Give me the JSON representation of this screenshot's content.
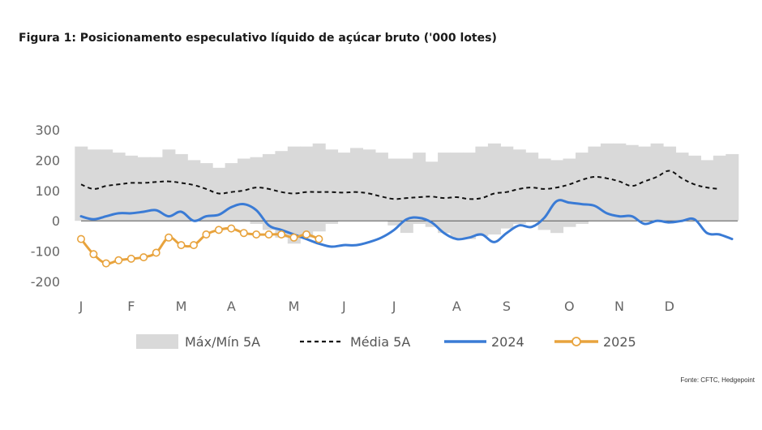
{
  "title": "Figura 1: Posicionamento especulativo líquido de açúcar bruto ('000 lotes)",
  "source": "Fonte: CFTC, Hedgepoint",
  "colors": {
    "band": "#d9d9d9",
    "mean": "#111111",
    "y2024": "#3a7bd5",
    "y2025": "#e8a33d",
    "axis": "#888888",
    "text": "#666666"
  },
  "chart_data": {
    "type": "line",
    "title": "Figura 1: Posicionamento especulativo líquido de açúcar bruto ('000 lotes)",
    "xlabel": "",
    "ylabel": "",
    "ylim": [
      -200,
      300
    ],
    "yticks": [
      300,
      200,
      100,
      0,
      -100,
      -200
    ],
    "xlim": [
      1,
      53
    ],
    "x_unit": "week of year",
    "month_ticks": [
      {
        "label": "J",
        "week": 1
      },
      {
        "label": "F",
        "week": 5
      },
      {
        "label": "M",
        "week": 9
      },
      {
        "label": "A",
        "week": 13
      },
      {
        "label": "M",
        "week": 18
      },
      {
        "label": "J",
        "week": 22
      },
      {
        "label": "J",
        "week": 26
      },
      {
        "label": "A",
        "week": 31
      },
      {
        "label": "S",
        "week": 35
      },
      {
        "label": "O",
        "week": 40
      },
      {
        "label": "N",
        "week": 44
      },
      {
        "label": "D",
        "week": 48
      }
    ],
    "grid": false,
    "legend_position": "bottom",
    "legend": [
      "Máx/Mín 5A",
      "Média 5A",
      "2024",
      "2025"
    ],
    "series": [
      {
        "name": "Máx/Mín 5A",
        "kind": "band",
        "x": [
          1,
          2,
          3,
          4,
          5,
          6,
          7,
          8,
          9,
          10,
          11,
          12,
          13,
          14,
          15,
          16,
          17,
          18,
          19,
          20,
          21,
          22,
          23,
          24,
          25,
          26,
          27,
          28,
          29,
          30,
          31,
          32,
          33,
          34,
          35,
          36,
          37,
          38,
          39,
          40,
          41,
          42,
          43,
          44,
          45,
          46,
          47,
          48,
          49,
          50,
          51,
          52,
          53
        ],
        "max": [
          245,
          235,
          235,
          225,
          215,
          210,
          210,
          235,
          220,
          200,
          190,
          175,
          190,
          205,
          210,
          220,
          230,
          245,
          245,
          255,
          235,
          225,
          240,
          235,
          225,
          205,
          205,
          225,
          195,
          225,
          225,
          225,
          245,
          255,
          245,
          235,
          225,
          205,
          200,
          205,
          225,
          245,
          255,
          255,
          250,
          245,
          255,
          245,
          225,
          215,
          200,
          215,
          220
        ],
        "min": [
          0,
          0,
          0,
          0,
          0,
          0,
          0,
          0,
          0,
          0,
          0,
          0,
          0,
          0,
          -10,
          -30,
          -55,
          -75,
          -55,
          -35,
          -10,
          0,
          0,
          0,
          0,
          -15,
          -40,
          -10,
          -20,
          -40,
          -55,
          -60,
          -50,
          -45,
          -25,
          -10,
          -5,
          -30,
          -40,
          -20,
          -10,
          0,
          0,
          0,
          0,
          0,
          0,
          0,
          0,
          0,
          0,
          0,
          0
        ]
      },
      {
        "name": "Média 5A",
        "x": [
          1,
          2,
          3,
          4,
          5,
          6,
          7,
          8,
          9,
          10,
          11,
          12,
          13,
          14,
          15,
          16,
          17,
          18,
          19,
          20,
          21,
          22,
          23,
          24,
          25,
          26,
          27,
          28,
          29,
          30,
          31,
          32,
          33,
          34,
          35,
          36,
          37,
          38,
          39,
          40,
          41,
          42,
          43,
          44,
          45,
          46,
          47,
          48,
          49,
          50,
          51,
          52
        ],
        "y": [
          120,
          105,
          115,
          120,
          125,
          125,
          128,
          130,
          125,
          118,
          105,
          90,
          95,
          100,
          110,
          105,
          95,
          90,
          95,
          95,
          95,
          93,
          95,
          90,
          80,
          72,
          75,
          78,
          80,
          75,
          78,
          72,
          75,
          90,
          95,
          105,
          110,
          105,
          110,
          120,
          135,
          145,
          140,
          130,
          115,
          130,
          145,
          165,
          140,
          120,
          110,
          105
        ]
      },
      {
        "name": "2024",
        "x": [
          1,
          2,
          3,
          4,
          5,
          6,
          7,
          8,
          9,
          10,
          11,
          12,
          13,
          14,
          15,
          16,
          17,
          18,
          19,
          20,
          21,
          22,
          23,
          24,
          25,
          26,
          27,
          28,
          29,
          30,
          31,
          32,
          33,
          34,
          35,
          36,
          37,
          38,
          39,
          40,
          41,
          42,
          43,
          44,
          45,
          46,
          47,
          48,
          49,
          50,
          51,
          52,
          53
        ],
        "y": [
          15,
          5,
          15,
          25,
          25,
          30,
          35,
          15,
          30,
          0,
          15,
          20,
          45,
          55,
          35,
          -15,
          -30,
          -45,
          -60,
          -75,
          -85,
          -80,
          -80,
          -70,
          -55,
          -30,
          5,
          10,
          -5,
          -40,
          -60,
          -55,
          -45,
          -70,
          -40,
          -15,
          -20,
          10,
          65,
          60,
          55,
          50,
          25,
          15,
          15,
          -10,
          0,
          -5,
          0,
          5,
          -40,
          -45,
          -60
        ]
      },
      {
        "name": "2025",
        "marker": "circle",
        "x": [
          1,
          2,
          3,
          4,
          5,
          6,
          7,
          8,
          9,
          10,
          11,
          12,
          13,
          14,
          15,
          16,
          17,
          18,
          19,
          20
        ],
        "y": [
          -60,
          -110,
          -140,
          -130,
          -125,
          -120,
          -105,
          -55,
          -80,
          -80,
          -45,
          -30,
          -25,
          -40,
          -45,
          -45,
          -45,
          -55,
          -45,
          -60
        ]
      }
    ]
  }
}
